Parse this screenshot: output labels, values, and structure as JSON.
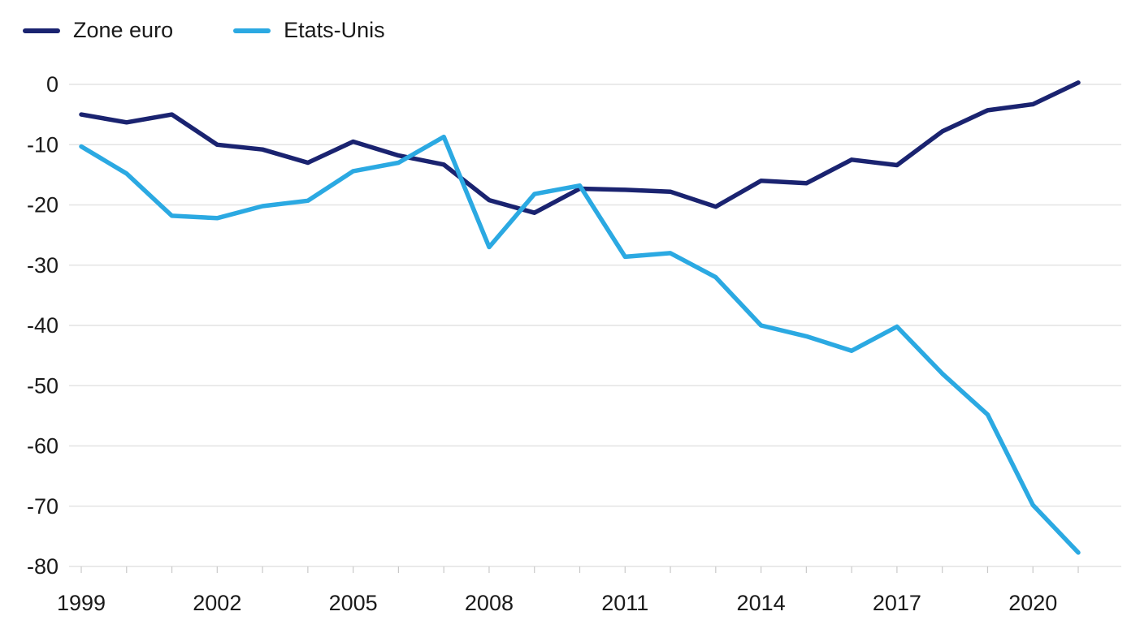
{
  "chart_data": {
    "type": "line",
    "x": [
      1999,
      2000,
      2001,
      2002,
      2003,
      2004,
      2005,
      2006,
      2007,
      2008,
      2009,
      2010,
      2011,
      2012,
      2013,
      2014,
      2015,
      2016,
      2017,
      2018,
      2019,
      2020,
      2021
    ],
    "series": [
      {
        "name": "Zone euro",
        "color": "#1a2370",
        "values": [
          -5,
          -6.3,
          -5,
          -10,
          -10.8,
          -13,
          -9.5,
          -11.8,
          -13.3,
          -19.2,
          -21.3,
          -17.3,
          -17.5,
          -17.8,
          -20.3,
          -16,
          -16.4,
          -12.5,
          -13.4,
          -7.8,
          -4.3,
          -3.3,
          0.3
        ]
      },
      {
        "name": "Etats-Unis",
        "color": "#2ba9e2",
        "values": [
          -10.3,
          -14.8,
          -21.8,
          -22.2,
          -20.2,
          -19.3,
          -14.4,
          -13,
          -8.7,
          -27,
          -18.2,
          -16.8,
          -28.6,
          -28,
          -32,
          -40,
          -41.8,
          -44.2,
          -40.2,
          -48,
          -54.8,
          -69.8,
          -77.7
        ]
      }
    ],
    "title": "",
    "xlabel": "",
    "ylabel": "",
    "xlim": [
      1999,
      2021
    ],
    "ylim": [
      -80,
      0
    ],
    "xticks": [
      1999,
      2002,
      2005,
      2008,
      2011,
      2014,
      2017,
      2020
    ],
    "yticks": [
      0,
      -10,
      -20,
      -30,
      -40,
      -50,
      -60,
      -70,
      -80
    ],
    "grid": "horizontal",
    "gridline_color": "#e4e4e4",
    "tick_color": "#c9c9c9",
    "legend_position": "top-left",
    "background": "#ffffff"
  }
}
